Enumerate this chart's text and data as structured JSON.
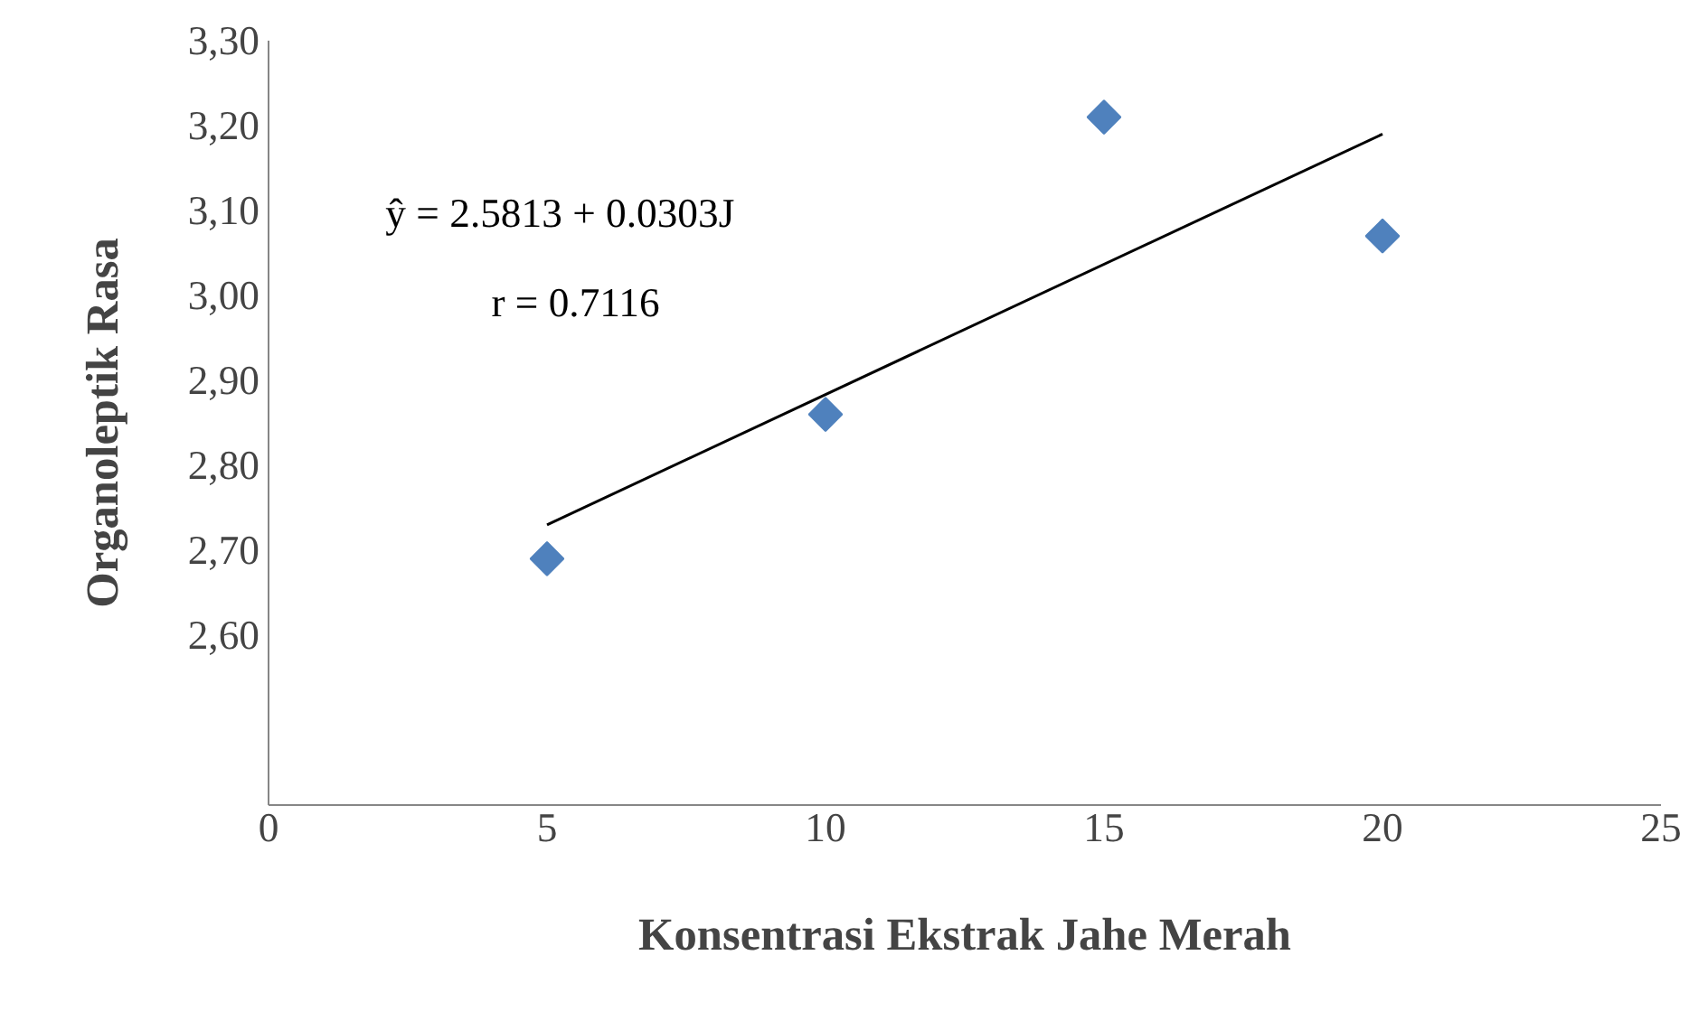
{
  "chart_data": {
    "type": "scatter",
    "xlabel": "Konsentrasi Ekstrak Jahe Merah",
    "ylabel": "Organoleptik Rasa",
    "x": [
      5,
      10,
      15,
      20
    ],
    "series": [
      {
        "color": "#4f81bd",
        "marker": "diamond",
        "values": [
          2.69,
          2.86,
          3.21,
          3.07
        ]
      },
      {
        "type": "line",
        "color": "#000000",
        "x": [
          5,
          20
        ],
        "values": [
          2.73,
          3.19
        ]
      }
    ],
    "xlim": [
      0,
      25
    ],
    "xticks": [
      0,
      5,
      10,
      15,
      20,
      25
    ],
    "ylim": [
      2.4,
      3.3
    ],
    "yticks": [
      {
        "value": 2.6,
        "label": "2,60"
      },
      {
        "value": 2.7,
        "label": "2,70"
      },
      {
        "value": 2.8,
        "label": "2,80"
      },
      {
        "value": 2.9,
        "label": "2,90"
      },
      {
        "value": 3.0,
        "label": "3,00"
      },
      {
        "value": 3.1,
        "label": "3,10"
      },
      {
        "value": 3.2,
        "label": "3,20"
      },
      {
        "value": 3.3,
        "label": "3,30"
      }
    ],
    "annotations": [
      "ŷ = 2.5813 + 0.0303J",
      "r = 0.7116"
    ]
  }
}
